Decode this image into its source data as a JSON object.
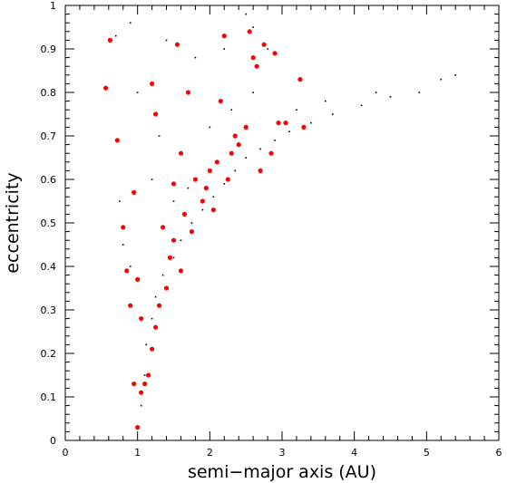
{
  "chart_data": {
    "type": "scatter",
    "title": "",
    "xlabel": "semi−major axis (AU)",
    "ylabel": "eccentricity",
    "xlim": [
      0,
      6
    ],
    "ylim": [
      0,
      1
    ],
    "x_ticks": [
      "0",
      "1",
      "2",
      "3",
      "4",
      "5",
      "6"
    ],
    "y_ticks": [
      "0",
      "0.1",
      "0.2",
      "0.3",
      "0.4",
      "0.5",
      "0.6",
      "0.7",
      "0.8",
      "0.9",
      "1"
    ],
    "grid": false,
    "legend": "none",
    "series": [
      {
        "marker": "small-dot",
        "color": "#000000",
        "points": [
          [
            1.0,
            0.03
          ],
          [
            1.05,
            0.08
          ],
          [
            1.1,
            0.15
          ],
          [
            1.12,
            0.22
          ],
          [
            1.2,
            0.28
          ],
          [
            1.25,
            0.33
          ],
          [
            1.35,
            0.38
          ],
          [
            1.5,
            0.42
          ],
          [
            1.6,
            0.46
          ],
          [
            1.75,
            0.5
          ],
          [
            1.9,
            0.53
          ],
          [
            2.05,
            0.56
          ],
          [
            2.2,
            0.59
          ],
          [
            2.35,
            0.62
          ],
          [
            2.5,
            0.65
          ],
          [
            2.7,
            0.67
          ],
          [
            2.9,
            0.69
          ],
          [
            3.1,
            0.71
          ],
          [
            3.4,
            0.73
          ],
          [
            3.7,
            0.75
          ],
          [
            4.1,
            0.77
          ],
          [
            4.5,
            0.79
          ],
          [
            4.9,
            0.8
          ],
          [
            5.2,
            0.83
          ],
          [
            5.4,
            0.84
          ],
          [
            0.7,
            0.93
          ],
          [
            0.9,
            0.96
          ],
          [
            1.4,
            0.92
          ],
          [
            1.8,
            0.88
          ],
          [
            2.2,
            0.9
          ],
          [
            2.5,
            0.98
          ],
          [
            2.6,
            0.95
          ],
          [
            2.8,
            0.9
          ],
          [
            1.0,
            0.8
          ],
          [
            1.3,
            0.7
          ],
          [
            1.6,
            0.66
          ],
          [
            0.75,
            0.55
          ],
          [
            0.8,
            0.45
          ],
          [
            0.9,
            0.4
          ],
          [
            1.5,
            0.55
          ],
          [
            1.7,
            0.58
          ],
          [
            2.0,
            0.72
          ],
          [
            2.3,
            0.76
          ],
          [
            2.6,
            0.8
          ],
          [
            3.2,
            0.76
          ],
          [
            3.6,
            0.78
          ],
          [
            4.3,
            0.8
          ],
          [
            1.2,
            0.6
          ]
        ]
      },
      {
        "marker": "large-dot",
        "color": "#ff0000",
        "points": [
          [
            0.56,
            0.81
          ],
          [
            0.62,
            0.92
          ],
          [
            0.72,
            0.69
          ],
          [
            0.8,
            0.49
          ],
          [
            0.85,
            0.39
          ],
          [
            0.9,
            0.31
          ],
          [
            0.95,
            0.13
          ],
          [
            1.0,
            0.03
          ],
          [
            1.05,
            0.11
          ],
          [
            1.1,
            0.13
          ],
          [
            1.15,
            0.15
          ],
          [
            1.2,
            0.21
          ],
          [
            1.25,
            0.26
          ],
          [
            1.3,
            0.31
          ],
          [
            1.4,
            0.35
          ],
          [
            1.45,
            0.42
          ],
          [
            1.5,
            0.46
          ],
          [
            1.6,
            0.39
          ],
          [
            1.65,
            0.52
          ],
          [
            1.75,
            0.48
          ],
          [
            1.8,
            0.6
          ],
          [
            1.9,
            0.55
          ],
          [
            1.95,
            0.58
          ],
          [
            2.0,
            0.62
          ],
          [
            2.05,
            0.53
          ],
          [
            2.1,
            0.64
          ],
          [
            2.15,
            0.78
          ],
          [
            2.2,
            0.93
          ],
          [
            2.25,
            0.6
          ],
          [
            2.3,
            0.66
          ],
          [
            2.35,
            0.7
          ],
          [
            2.4,
            0.68
          ],
          [
            2.5,
            0.72
          ],
          [
            2.55,
            0.94
          ],
          [
            2.6,
            0.88
          ],
          [
            2.65,
            0.86
          ],
          [
            2.7,
            0.62
          ],
          [
            2.75,
            0.91
          ],
          [
            2.85,
            0.66
          ],
          [
            2.9,
            0.89
          ],
          [
            2.95,
            0.73
          ],
          [
            3.05,
            0.73
          ],
          [
            3.3,
            0.72
          ],
          [
            3.25,
            0.83
          ],
          [
            1.35,
            0.49
          ],
          [
            1.5,
            0.59
          ],
          [
            1.7,
            0.8
          ],
          [
            1.25,
            0.75
          ],
          [
            1.55,
            0.91
          ],
          [
            1.2,
            0.82
          ],
          [
            0.95,
            0.57
          ],
          [
            1.0,
            0.37
          ],
          [
            1.05,
            0.28
          ],
          [
            1.6,
            0.66
          ]
        ]
      }
    ]
  }
}
